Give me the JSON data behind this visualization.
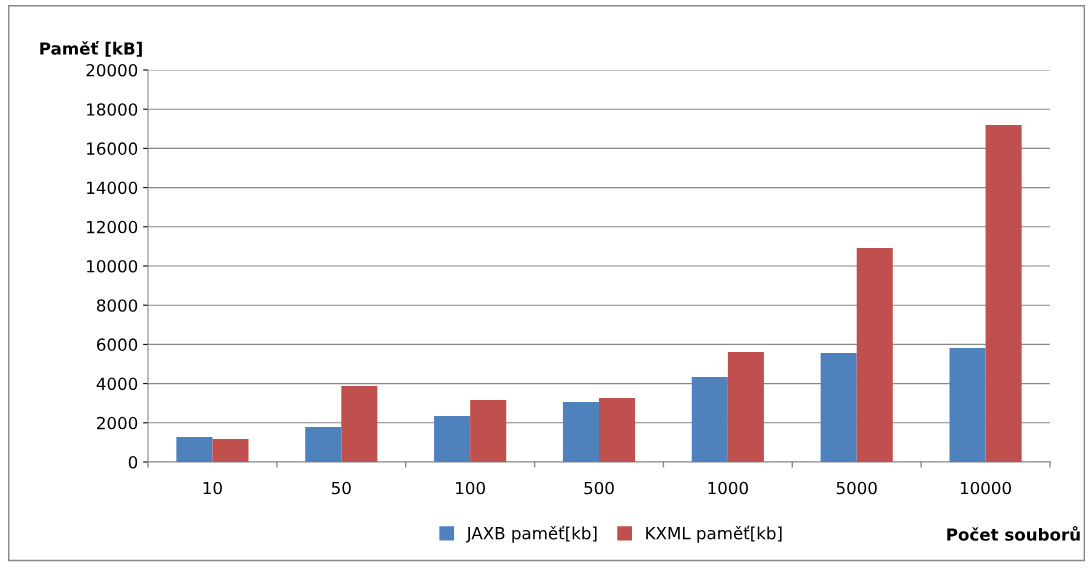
{
  "chart_data": {
    "type": "bar",
    "ylabel": "Paměť [kB]",
    "xlabel": "Počet souborů",
    "categories": [
      "10",
      "50",
      "100",
      "500",
      "1000",
      "5000",
      "10000"
    ],
    "series": [
      {
        "name": "JAXB paměť[kb]",
        "color": "#4f81bd",
        "values": [
          1270,
          1790,
          2350,
          3060,
          4340,
          5560,
          5820
        ]
      },
      {
        "name": "KXML paměť[kb]",
        "color": "#c0504d",
        "values": [
          1170,
          3880,
          3160,
          3270,
          5610,
          10920,
          17190
        ]
      }
    ],
    "ylim": [
      0,
      20000
    ],
    "yticks": [
      0,
      2000,
      4000,
      6000,
      8000,
      10000,
      12000,
      14000,
      16000,
      18000,
      20000
    ],
    "grid": "y",
    "legend": "bottom"
  }
}
